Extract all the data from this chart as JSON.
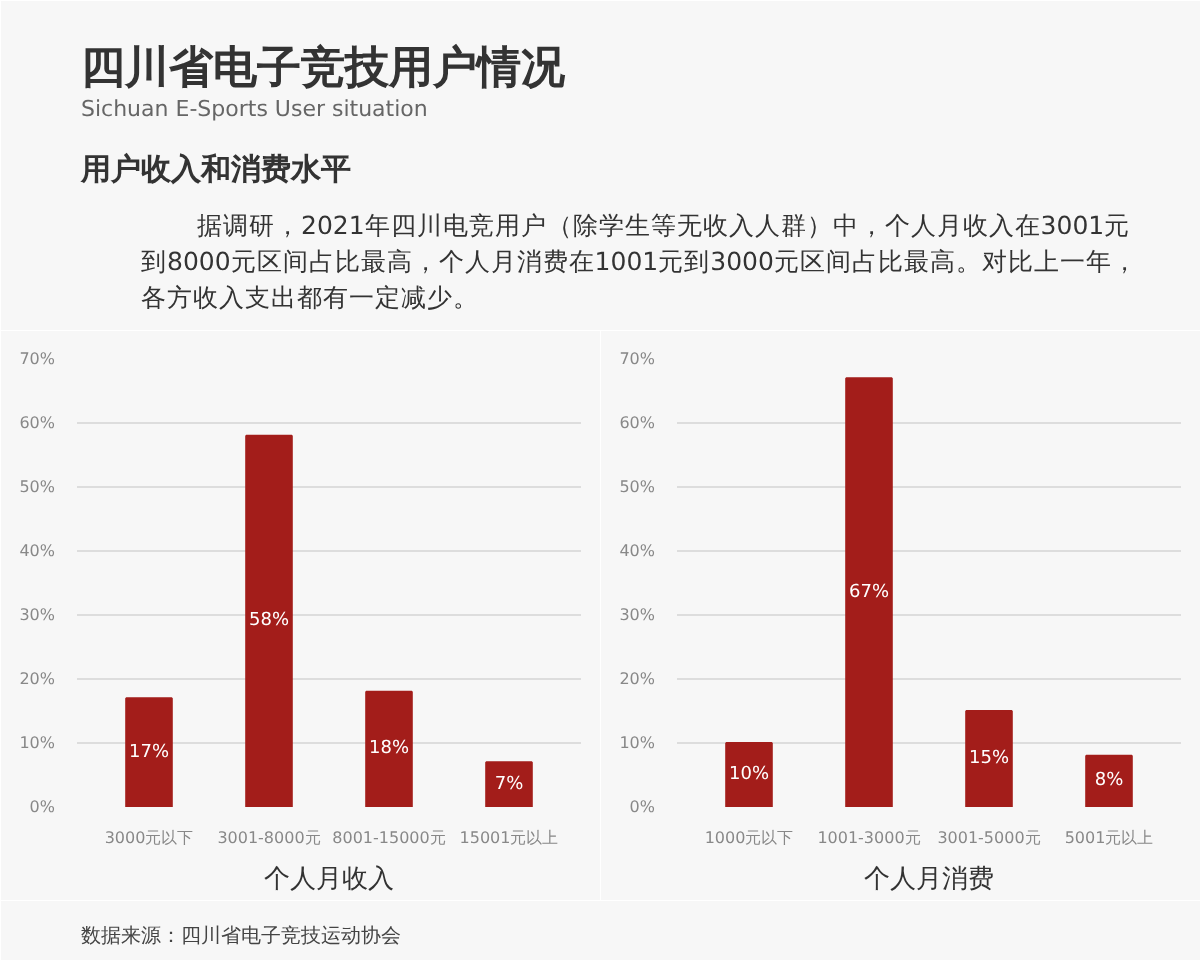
{
  "chart_data": [
    {
      "type": "bar",
      "title": "四川省电子竞技用户情况",
      "subtitle": "Sichuan E-Sports User situation",
      "annotations": [
        "用户收入和消费水平",
        "据调研，2021年四川电竞用户（除学生等无收入人群）中，个人月收入在3001元到8000元区间占比最高，个人月消费在1001元到3000元区间占比最高。对比上一年，各方收入支出都有一定减少。"
      ],
      "categories": [
        "3000元以下",
        "3001-8000元",
        "8001-15000元",
        "15001元以上"
      ],
      "values": [
        17,
        58,
        18,
        7
      ],
      "value_labels": [
        "17%",
        "58%",
        "18%",
        "7%"
      ],
      "color": "#a31d1a",
      "xlabel": "个人月收入",
      "ylim": [
        0,
        70
      ],
      "yticks": [
        {
          "value": 0,
          "label": "0%"
        },
        {
          "value": 10,
          "label": "10%"
        },
        {
          "value": 20,
          "label": "20%"
        },
        {
          "value": 30,
          "label": "30%"
        },
        {
          "value": 40,
          "label": "40%"
        },
        {
          "value": 50,
          "label": "50%"
        },
        {
          "value": 60,
          "label": "60%"
        },
        {
          "value": 70,
          "label": "70%"
        }
      ],
      "grid": "y"
    },
    {
      "type": "bar",
      "annotations": [
        "数据来源：四川省电子竞技运动协会"
      ],
      "categories": [
        "1000元以下",
        "1001-3000元",
        "3001-5000元",
        "5001元以上"
      ],
      "values": [
        10,
        67,
        15,
        8
      ],
      "value_labels": [
        "10%",
        "67%",
        "15%",
        "8%"
      ],
      "color": "#a31d1a",
      "xlabel": "个人月消费",
      "ylim": [
        0,
        70
      ],
      "yticks": [
        {
          "value": 0,
          "label": "0%"
        },
        {
          "value": 10,
          "label": "10%"
        },
        {
          "value": 20,
          "label": "20%"
        },
        {
          "value": 30,
          "label": "30%"
        },
        {
          "value": 40,
          "label": "40%"
        },
        {
          "value": 50,
          "label": "50%"
        },
        {
          "value": 60,
          "label": "60%"
        },
        {
          "value": 70,
          "label": "70%"
        }
      ],
      "grid": "y"
    }
  ]
}
